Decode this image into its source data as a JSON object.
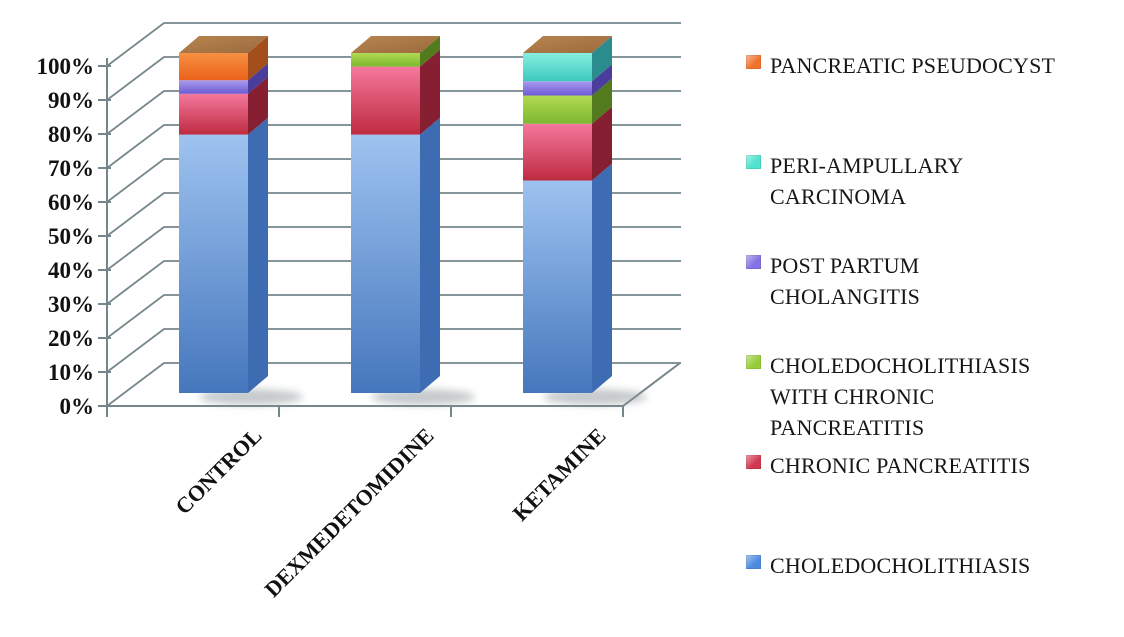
{
  "chart_data": {
    "type": "bar",
    "variant": "3d-stacked-100-percent-column",
    "categories": [
      "CONTROL",
      "DEXMEDETOMIDINE",
      "KETAMINE"
    ],
    "series": [
      {
        "name": "CHOLEDOCHOLITHIASIS",
        "color": "#4E8BE0",
        "values": [
          76,
          76,
          62.5
        ]
      },
      {
        "name": "CHRONIC PANCREATITIS",
        "color": "#D23850",
        "values": [
          12,
          20,
          16.7
        ]
      },
      {
        "name": "CHOLEDOCHOLITHIASIS WITH CHRONIC PANCREATITIS",
        "color": "#97CC3A",
        "values": [
          0,
          4,
          8.3
        ]
      },
      {
        "name": "POST PARTUM CHOLANGITIS",
        "color": "#8372E3",
        "values": [
          4,
          0,
          4.2
        ]
      },
      {
        "name": "PERI-AMPULLARY CARCINOMA",
        "color": "#4FE2CE",
        "values": [
          0,
          0,
          8.3
        ]
      },
      {
        "name": "PANCREATIC PSEUDOCYST",
        "color": "#F0722E",
        "values": [
          8,
          0,
          0
        ]
      }
    ],
    "y_ticks": [
      "0%",
      "10%",
      "20%",
      "30%",
      "40%",
      "50%",
      "60%",
      "70%",
      "80%",
      "90%",
      "100%"
    ],
    "ylim": [
      0,
      100
    ],
    "grid": true,
    "legend_position": "right",
    "x_label_rotation_deg": -45
  },
  "legend": {
    "items": [
      {
        "label": "PANCREATIC PSEUDOCYST",
        "color": "#F0722E"
      },
      {
        "label": "PERI-AMPULLARY CARCINOMA",
        "color": "#4FE2CE"
      },
      {
        "label": "POST PARTUM CHOLANGITIS",
        "color": "#8372E3"
      },
      {
        "label": "CHOLEDOCHOLITHIASIS WITH CHRONIC PANCREATITIS",
        "color": "#97CC3A"
      },
      {
        "label": "CHRONIC PANCREATITIS",
        "color": "#D23850"
      },
      {
        "label": "CHOLEDOCHOLITHIASIS",
        "color": "#4E8BE0"
      }
    ]
  },
  "style": {
    "grid_color": "#75868B",
    "text_color": "#111111",
    "bar_top_face": [
      "#B8854F",
      "#9B6A3E"
    ],
    "series_faces": [
      {
        "front_top": "#9EC3F0",
        "front_bottom": "#4577BD",
        "side": "#3E6CB2"
      },
      {
        "front_top": "#F4789C",
        "front_bottom": "#BE2B40",
        "side": "#871F33"
      },
      {
        "front_top": "#B1DA53",
        "front_bottom": "#7CB82E",
        "side": "#527B1D"
      },
      {
        "front_top": "#A89BEC",
        "front_bottom": "#6F5AD6",
        "side": "#4A3D9C"
      },
      {
        "front_top": "#86EFDF",
        "front_bottom": "#3DC8BE",
        "side": "#2A8C8C"
      },
      {
        "front_top": "#F79041",
        "front_bottom": "#EA621A",
        "side": "#A44E1B"
      }
    ]
  }
}
